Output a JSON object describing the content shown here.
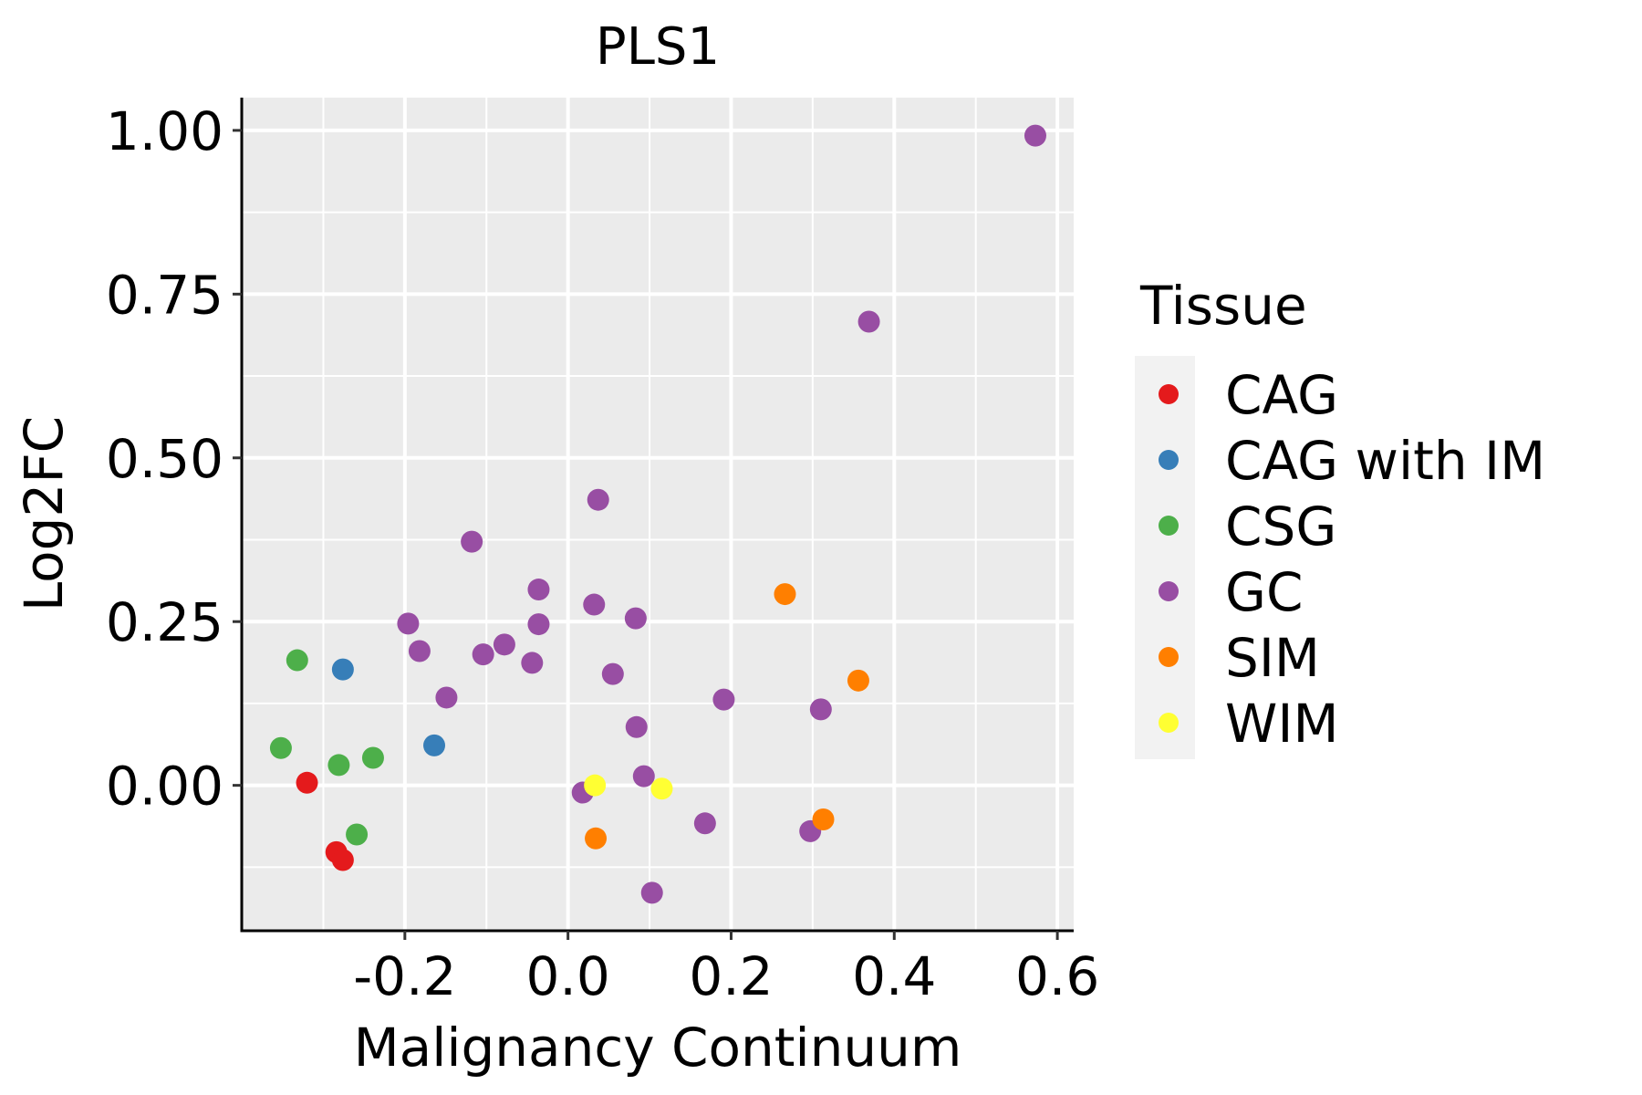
{
  "chart_data": {
    "type": "scatter",
    "title": "PLS1",
    "xlabel": "Malignancy Continuum",
    "ylabel": "Log2FC",
    "xlim": [
      -0.4,
      0.62
    ],
    "ylim": [
      -0.222,
      1.05
    ],
    "x_ticks": [
      -0.2,
      0.0,
      0.2,
      0.4,
      0.6
    ],
    "x_tick_labels": [
      "-0.2",
      "0.0",
      "0.2",
      "0.4",
      "0.6"
    ],
    "y_ticks": [
      0.0,
      0.25,
      0.5,
      0.75,
      1.0
    ],
    "y_tick_labels": [
      "0.00",
      "0.25",
      "0.50",
      "0.75",
      "1.00"
    ],
    "x_minor_gridlines": [
      -0.3,
      -0.1,
      0.1,
      0.3,
      0.5
    ],
    "y_minor_gridlines": [
      -0.125,
      0.125,
      0.375,
      0.625,
      0.875
    ],
    "grid": true,
    "panel_background": "#EBEBEB",
    "legend": {
      "title": "Tissue",
      "position": "right",
      "background": "#F2F2F2"
    },
    "series": [
      {
        "name": "CAG",
        "color": "#E41A1C",
        "points": [
          {
            "x": -0.32,
            "y": 0.004
          },
          {
            "x": -0.284,
            "y": -0.102
          },
          {
            "x": -0.276,
            "y": -0.114
          }
        ]
      },
      {
        "name": "CAG with IM",
        "color": "#377EB8",
        "points": [
          {
            "x": -0.276,
            "y": 0.177
          },
          {
            "x": -0.164,
            "y": 0.061
          }
        ]
      },
      {
        "name": "CSG",
        "color": "#4DAF4A",
        "points": [
          {
            "x": -0.332,
            "y": 0.191
          },
          {
            "x": -0.352,
            "y": 0.057
          },
          {
            "x": -0.281,
            "y": 0.031
          },
          {
            "x": -0.239,
            "y": 0.042
          },
          {
            "x": -0.259,
            "y": -0.075
          }
        ]
      },
      {
        "name": "GC",
        "color": "#984EA3",
        "points": [
          {
            "x": 0.573,
            "y": 0.992
          },
          {
            "x": 0.369,
            "y": 0.708
          },
          {
            "x": 0.037,
            "y": 0.436
          },
          {
            "x": -0.118,
            "y": 0.372
          },
          {
            "x": -0.036,
            "y": 0.299
          },
          {
            "x": 0.032,
            "y": 0.276
          },
          {
            "x": 0.083,
            "y": 0.255
          },
          {
            "x": -0.196,
            "y": 0.247
          },
          {
            "x": -0.036,
            "y": 0.246
          },
          {
            "x": -0.078,
            "y": 0.215
          },
          {
            "x": -0.182,
            "y": 0.205
          },
          {
            "x": -0.104,
            "y": 0.2
          },
          {
            "x": -0.044,
            "y": 0.187
          },
          {
            "x": 0.055,
            "y": 0.17
          },
          {
            "x": -0.149,
            "y": 0.134
          },
          {
            "x": 0.191,
            "y": 0.131
          },
          {
            "x": 0.31,
            "y": 0.116
          },
          {
            "x": 0.084,
            "y": 0.089
          },
          {
            "x": 0.093,
            "y": 0.014
          },
          {
            "x": 0.018,
            "y": -0.011
          },
          {
            "x": 0.168,
            "y": -0.058
          },
          {
            "x": 0.297,
            "y": -0.07
          },
          {
            "x": 0.103,
            "y": -0.164
          }
        ]
      },
      {
        "name": "SIM",
        "color": "#FF7F00",
        "points": [
          {
            "x": 0.266,
            "y": 0.292
          },
          {
            "x": 0.356,
            "y": 0.16
          },
          {
            "x": 0.313,
            "y": -0.052
          },
          {
            "x": 0.034,
            "y": -0.081
          }
        ]
      },
      {
        "name": "WIM",
        "color": "#FFFF33",
        "points": [
          {
            "x": 0.033,
            "y": 0.0
          },
          {
            "x": 0.115,
            "y": -0.005
          }
        ]
      }
    ]
  }
}
